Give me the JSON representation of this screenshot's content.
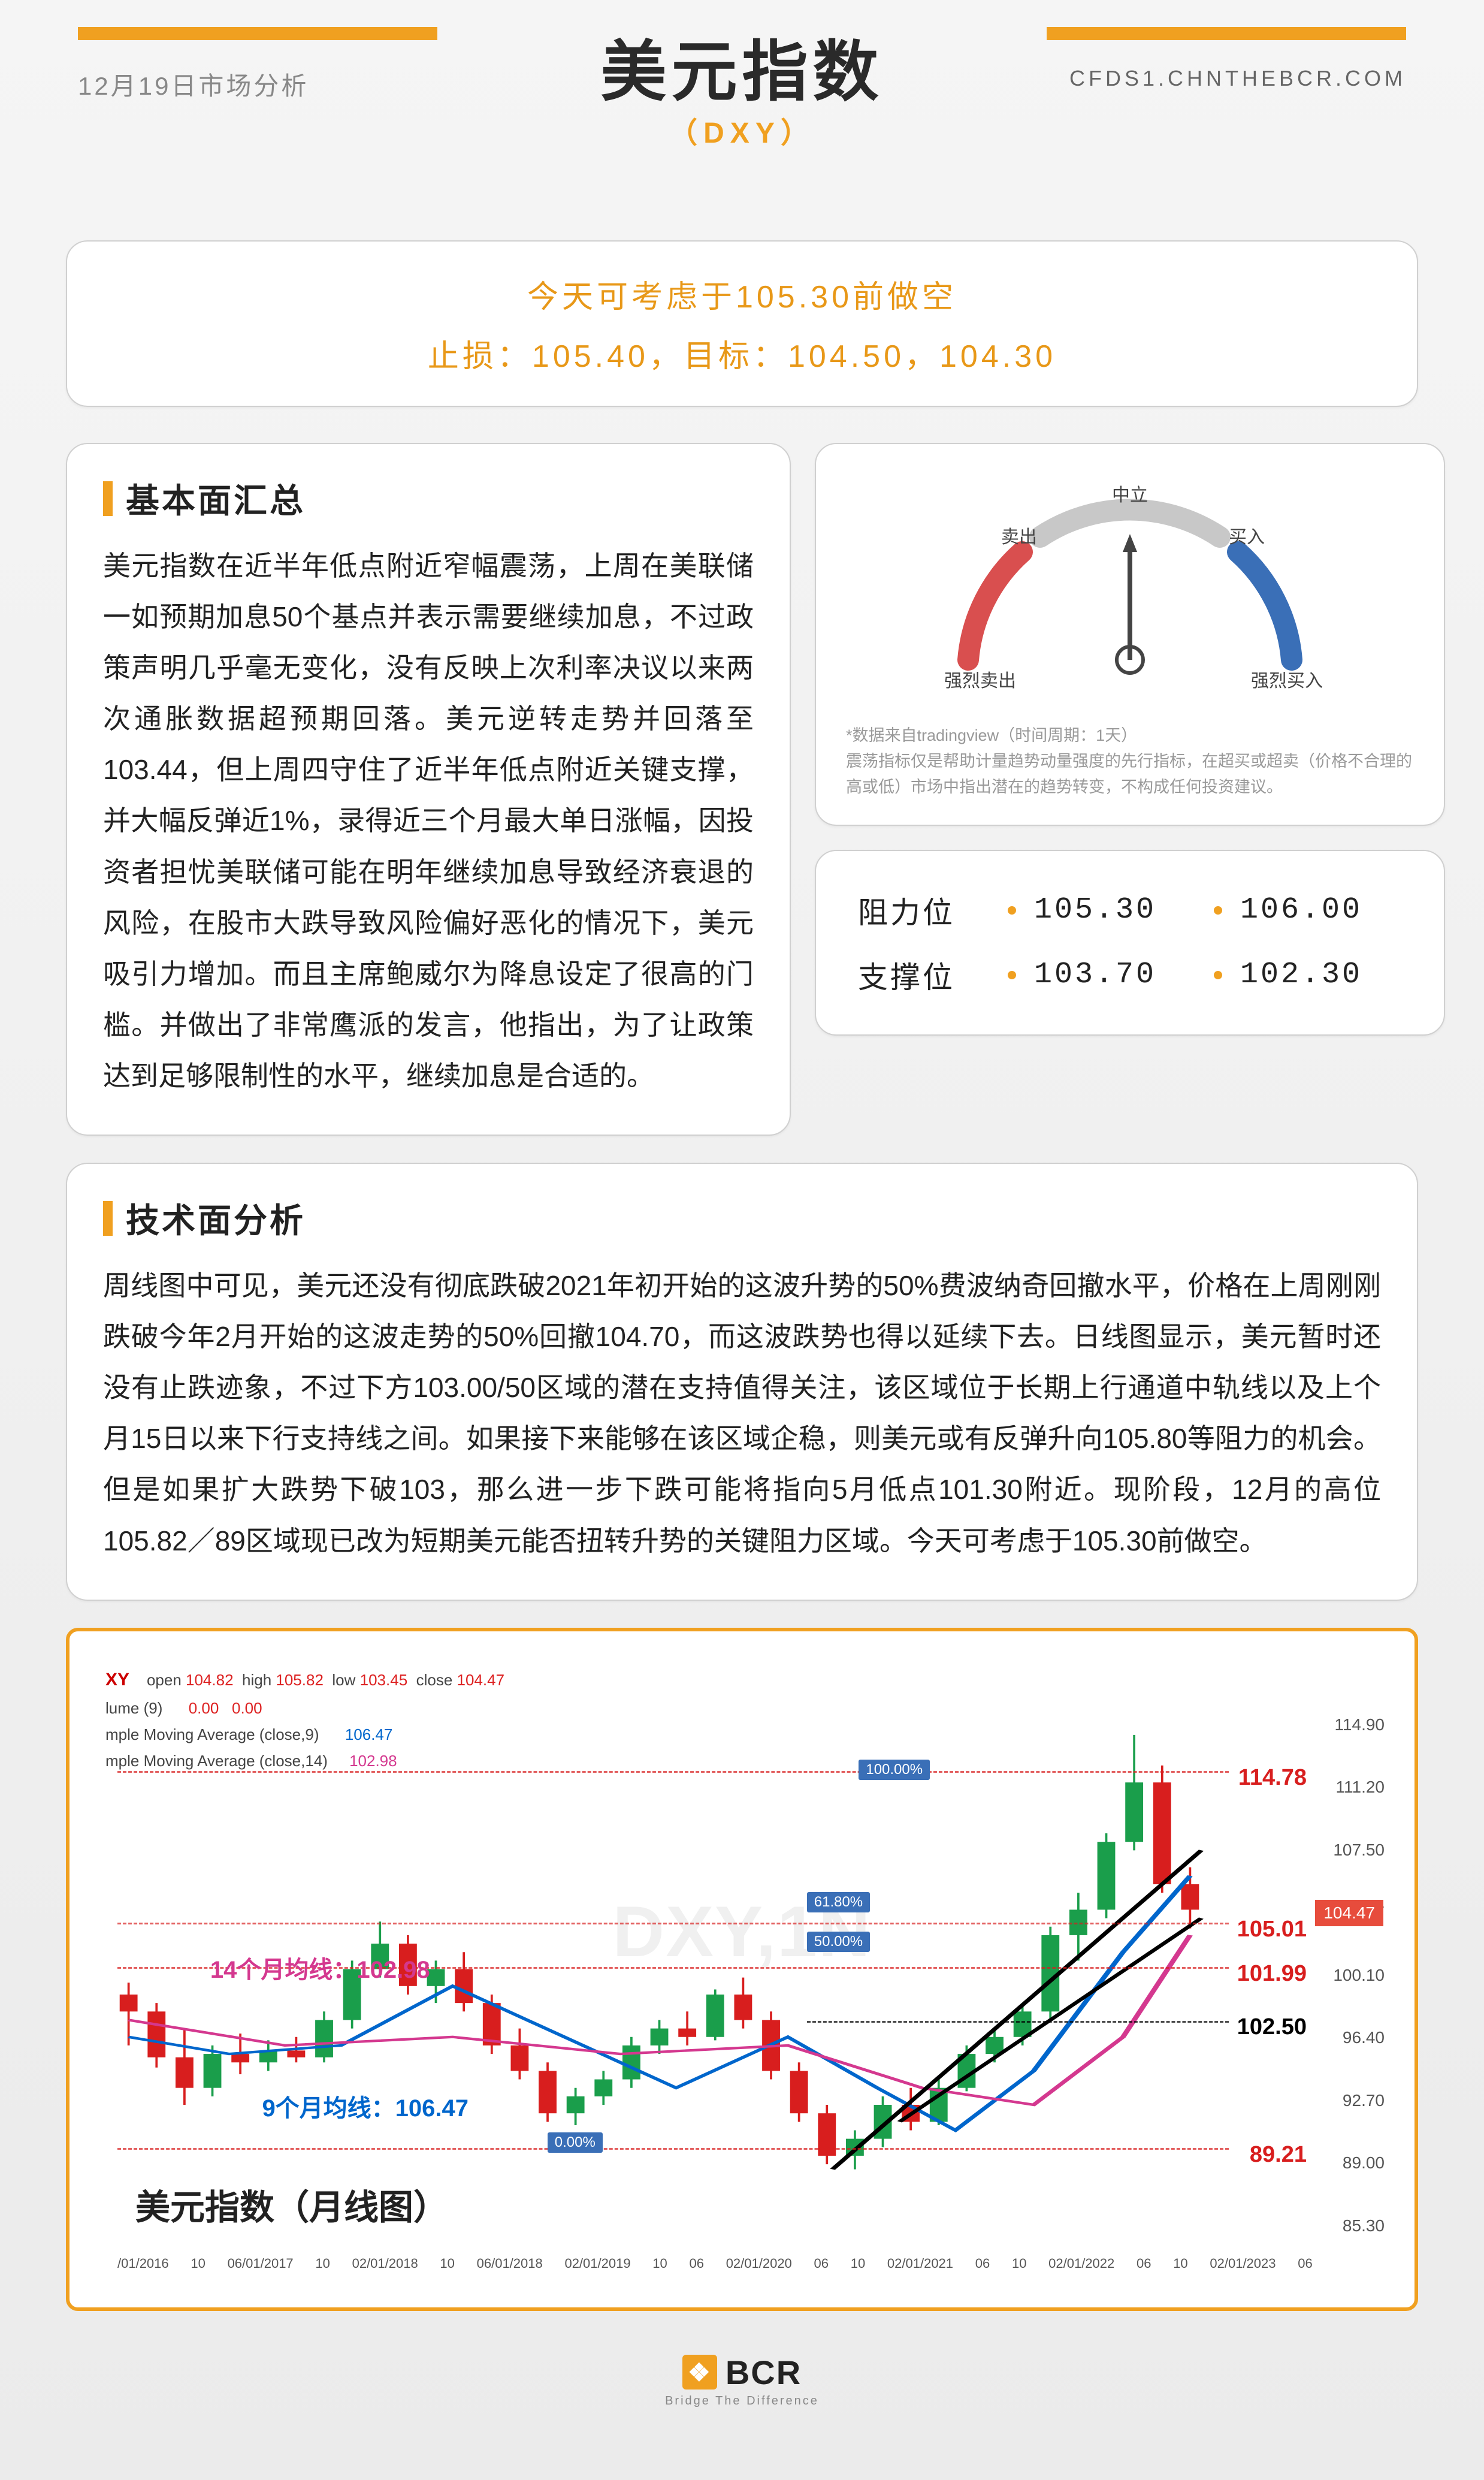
{
  "header": {
    "date": "12月19日市场分析",
    "title": "美元指数",
    "subtitle": "（DXY）",
    "url": "CFDS1.CHNTHEBCR.COM",
    "accent_color": "#f0a020"
  },
  "strategy": {
    "line1": "今天可考虑于105.30前做空",
    "line2": "止损：105.40，目标：104.50，104.30",
    "text_color": "#e89818"
  },
  "fundamentals": {
    "title": "基本面汇总",
    "body": "美元指数在近半年低点附近窄幅震荡，上周在美联储一如预期加息50个基点并表示需要继续加息，不过政策声明几乎毫无变化，没有反映上次利率决议以来两次通胀数据超预期回落。美元逆转走势并回落至103.44，但上周四守住了近半年低点附近关键支撑，并大幅反弹近1%，录得近三个月最大单日涨幅，因投资者担忧美联储可能在明年继续加息导致经济衰退的风险，在股市大跌导致风险偏好恶化的情况下，美元吸引力增加。而且主席鲍威尔为降息设定了很高的门槛。并做出了非常鹰派的发言，他指出，为了让政策达到足够限制性的水平，继续加息是合适的。"
  },
  "gauge": {
    "labels": {
      "strong_sell": "强烈卖出",
      "sell": "卖出",
      "neutral": "中立",
      "buy": "买入",
      "strong_buy": "强烈买入"
    },
    "colors": {
      "sell_arc": "#d94f4f",
      "neutral_arc": "#c0c0c0",
      "buy_arc": "#3a6fb7"
    },
    "needle_position": 0.5,
    "note": "*数据来自tradingview（时间周期：1天）\n震荡指标仅是帮助计量趋势动量强度的先行指标，在超买或超卖（价格不合理的高或低）市场中指出潜在的趋势转变，不构成任何投资建议。"
  },
  "levels": {
    "resistance_label": "阻力位",
    "support_label": "支撑位",
    "resistance": [
      "105.30",
      "106.00"
    ],
    "support": [
      "103.70",
      "102.30"
    ],
    "dot_color": "#f0a020"
  },
  "technical": {
    "title": "技术面分析",
    "body": "周线图中可见，美元还没有彻底跌破2021年初开始的这波升势的50%费波纳奇回撤水平，价格在上周刚刚跌破今年2月开始的这波走势的50%回撤104.70，而这波跌势也得以延续下去。日线图显示，美元暂时还没有止跌迹象，不过下方103.00/50区域的潜在支持值得关注，该区域位于长期上行通道中轨线以及上个月15日以来下行支持线之间。如果接下来能够在该区域企稳，则美元或有反弹升向105.80等阻力的机会。但是如果扩大跌势下破103，那么进一步下跌可能将指向5月低点101.30附近。现阶段，12月的高位105.82／89区域现已改为短期美元能否扭转升势的关键阻力区域。今天可考虑于105.30前做空。"
  },
  "chart": {
    "type": "candlestick",
    "title_bottom": "美元指数（月线图）",
    "watermark": "DXY,1N",
    "symbol": "XY",
    "ohlc": {
      "open": "104.82",
      "high": "105.82",
      "low": "103.45",
      "close": "104.47"
    },
    "volume_label": "lume (9)",
    "volume_vals": [
      "0.00",
      "0.00"
    ],
    "sma9": {
      "label": "mple Moving Average (close,9)",
      "value": "106.47",
      "color": "#0066cc"
    },
    "sma14": {
      "label": "mple Moving Average (close,14)",
      "value": "102.98",
      "color": "#d4388f"
    },
    "ma_annotations": {
      "ma14": "14个月均线：102.98",
      "ma9": "9个月均线：106.47"
    },
    "price_marks": [
      {
        "text": "114.78",
        "color": "#d81e1e",
        "top_pct": 7
      },
      {
        "text": "105.01",
        "color": "#d81e1e",
        "top_pct": 38
      },
      {
        "text": "101.99",
        "color": "#d81e1e",
        "top_pct": 47
      },
      {
        "text": "102.50",
        "color": "#000000",
        "top_pct": 58
      },
      {
        "text": "89.21",
        "color": "#d81e1e",
        "top_pct": 84
      }
    ],
    "last_price_tag": "104.47",
    "fib_labels": [
      {
        "text": "100.00%",
        "top_pct": 6,
        "left_pct": 59
      },
      {
        "text": "61.80%",
        "top_pct": 33,
        "left_pct": 55
      },
      {
        "text": "50.00%",
        "top_pct": 41,
        "left_pct": 55
      },
      {
        "text": "0.00%",
        "top_pct": 82,
        "left_pct": 35
      }
    ],
    "y_axis": {
      "min": 85.3,
      "max": 114.9,
      "ticks": [
        "114.90",
        "111.20",
        "107.50",
        "104.47",
        "100.10",
        "96.40",
        "92.70",
        "89.00",
        "85.30"
      ]
    },
    "x_axis": [
      "/01/2016",
      "10",
      "06/01/2017",
      "10",
      "02/01/2018",
      "10",
      "06/01/2018",
      "02/01/2019",
      "10",
      "06",
      "02/01/2020",
      "06",
      "10",
      "02/01/2021",
      "06",
      "10",
      "02/01/2022",
      "06",
      "10",
      "02/01/2023",
      "06"
    ],
    "candles": [
      {
        "x": 0.01,
        "o": 99.5,
        "h": 100.2,
        "l": 96.5,
        "c": 98.5,
        "up": false
      },
      {
        "x": 0.035,
        "o": 98.5,
        "h": 99.0,
        "l": 95.2,
        "c": 95.8,
        "up": false
      },
      {
        "x": 0.06,
        "o": 95.8,
        "h": 97.5,
        "l": 93.0,
        "c": 94.0,
        "up": false
      },
      {
        "x": 0.085,
        "o": 94.0,
        "h": 96.5,
        "l": 93.5,
        "c": 96.0,
        "up": true
      },
      {
        "x": 0.11,
        "o": 96.0,
        "h": 97.2,
        "l": 94.8,
        "c": 95.5,
        "up": false
      },
      {
        "x": 0.135,
        "o": 95.5,
        "h": 96.8,
        "l": 95.0,
        "c": 96.2,
        "up": true
      },
      {
        "x": 0.16,
        "o": 96.2,
        "h": 97.0,
        "l": 95.5,
        "c": 95.8,
        "up": false
      },
      {
        "x": 0.185,
        "o": 95.8,
        "h": 98.5,
        "l": 95.5,
        "c": 98.0,
        "up": true
      },
      {
        "x": 0.21,
        "o": 98.0,
        "h": 101.5,
        "l": 97.5,
        "c": 101.0,
        "up": true
      },
      {
        "x": 0.235,
        "o": 101.0,
        "h": 103.8,
        "l": 100.5,
        "c": 102.5,
        "up": true
      },
      {
        "x": 0.26,
        "o": 102.5,
        "h": 103.0,
        "l": 99.5,
        "c": 100.0,
        "up": false
      },
      {
        "x": 0.285,
        "o": 100.0,
        "h": 101.5,
        "l": 99.0,
        "c": 101.0,
        "up": true
      },
      {
        "x": 0.31,
        "o": 101.0,
        "h": 102.0,
        "l": 98.5,
        "c": 99.0,
        "up": false
      },
      {
        "x": 0.335,
        "o": 99.0,
        "h": 99.5,
        "l": 96.0,
        "c": 96.5,
        "up": false
      },
      {
        "x": 0.36,
        "o": 96.5,
        "h": 97.5,
        "l": 94.5,
        "c": 95.0,
        "up": false
      },
      {
        "x": 0.385,
        "o": 95.0,
        "h": 95.5,
        "l": 92.0,
        "c": 92.5,
        "up": false
      },
      {
        "x": 0.41,
        "o": 92.5,
        "h": 94.0,
        "l": 91.8,
        "c": 93.5,
        "up": true
      },
      {
        "x": 0.435,
        "o": 93.5,
        "h": 95.0,
        "l": 93.0,
        "c": 94.5,
        "up": true
      },
      {
        "x": 0.46,
        "o": 94.5,
        "h": 97.0,
        "l": 94.0,
        "c": 96.5,
        "up": true
      },
      {
        "x": 0.485,
        "o": 96.5,
        "h": 98.0,
        "l": 96.0,
        "c": 97.5,
        "up": true
      },
      {
        "x": 0.51,
        "o": 97.5,
        "h": 98.5,
        "l": 96.5,
        "c": 97.0,
        "up": false
      },
      {
        "x": 0.535,
        "o": 97.0,
        "h": 99.8,
        "l": 96.8,
        "c": 99.5,
        "up": true
      },
      {
        "x": 0.56,
        "o": 99.5,
        "h": 100.5,
        "l": 97.5,
        "c": 98.0,
        "up": false
      },
      {
        "x": 0.585,
        "o": 98.0,
        "h": 98.5,
        "l": 94.5,
        "c": 95.0,
        "up": false
      },
      {
        "x": 0.61,
        "o": 95.0,
        "h": 95.5,
        "l": 92.0,
        "c": 92.5,
        "up": false
      },
      {
        "x": 0.635,
        "o": 92.5,
        "h": 93.0,
        "l": 89.5,
        "c": 90.0,
        "up": false
      },
      {
        "x": 0.66,
        "o": 90.0,
        "h": 91.5,
        "l": 89.2,
        "c": 91.0,
        "up": true
      },
      {
        "x": 0.685,
        "o": 91.0,
        "h": 93.5,
        "l": 90.5,
        "c": 93.0,
        "up": true
      },
      {
        "x": 0.71,
        "o": 93.0,
        "h": 94.0,
        "l": 91.5,
        "c": 92.0,
        "up": false
      },
      {
        "x": 0.735,
        "o": 92.0,
        "h": 94.5,
        "l": 91.8,
        "c": 94.0,
        "up": true
      },
      {
        "x": 0.76,
        "o": 94.0,
        "h": 96.5,
        "l": 93.8,
        "c": 96.0,
        "up": true
      },
      {
        "x": 0.785,
        "o": 96.0,
        "h": 97.5,
        "l": 95.5,
        "c": 97.0,
        "up": true
      },
      {
        "x": 0.81,
        "o": 97.0,
        "h": 99.0,
        "l": 96.5,
        "c": 98.5,
        "up": true
      },
      {
        "x": 0.835,
        "o": 98.5,
        "h": 103.5,
        "l": 98.0,
        "c": 103.0,
        "up": true
      },
      {
        "x": 0.86,
        "o": 103.0,
        "h": 105.5,
        "l": 101.5,
        "c": 104.5,
        "up": true
      },
      {
        "x": 0.885,
        "o": 104.5,
        "h": 109.0,
        "l": 104.0,
        "c": 108.5,
        "up": true
      },
      {
        "x": 0.91,
        "o": 108.5,
        "h": 114.8,
        "l": 108.0,
        "c": 112.0,
        "up": true
      },
      {
        "x": 0.935,
        "o": 112.0,
        "h": 113.0,
        "l": 105.5,
        "c": 106.0,
        "up": false
      },
      {
        "x": 0.96,
        "o": 106.0,
        "h": 107.0,
        "l": 103.4,
        "c": 104.5,
        "up": false
      }
    ],
    "sma9_path": [
      [
        0.01,
        97
      ],
      [
        0.1,
        96
      ],
      [
        0.2,
        96.5
      ],
      [
        0.3,
        100
      ],
      [
        0.4,
        97
      ],
      [
        0.5,
        94
      ],
      [
        0.6,
        97
      ],
      [
        0.68,
        94
      ],
      [
        0.75,
        91.5
      ],
      [
        0.82,
        95
      ],
      [
        0.9,
        102
      ],
      [
        0.96,
        106.5
      ]
    ],
    "sma14_path": [
      [
        0.01,
        98
      ],
      [
        0.15,
        96.5
      ],
      [
        0.3,
        97
      ],
      [
        0.45,
        96
      ],
      [
        0.6,
        96.5
      ],
      [
        0.72,
        94
      ],
      [
        0.82,
        93
      ],
      [
        0.9,
        97
      ],
      [
        0.96,
        103
      ]
    ],
    "colors": {
      "up_candle": "#1a9e4b",
      "down_candle": "#d81e1e",
      "grid": "#f0f0f0",
      "background": "#ffffff",
      "border": "#f0a020"
    }
  },
  "footer": {
    "logo_text": "BCR",
    "tagline": "Bridge The Difference",
    "logo_icon": "❖"
  }
}
